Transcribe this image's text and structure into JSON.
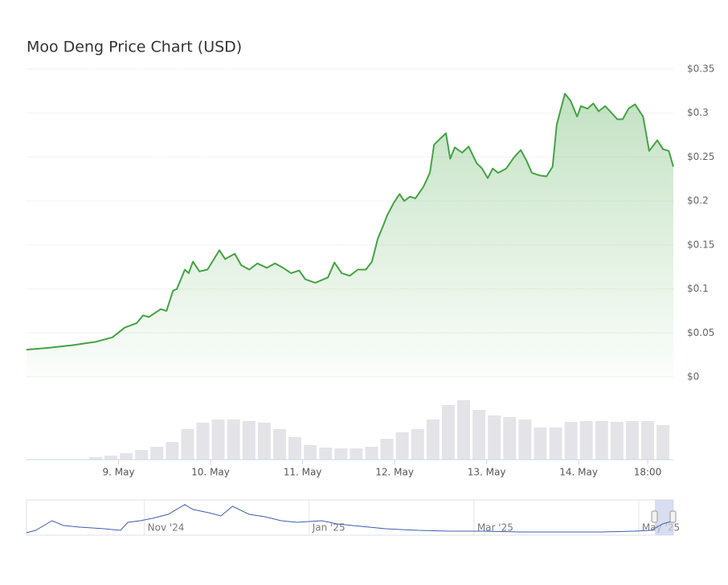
{
  "chart_data": {
    "type": "line",
    "title": "Moo Deng Price Chart (USD)",
    "x": [
      0,
      5.7,
      11.9,
      18.2,
      22.4,
      25.6,
      28.7,
      30.4,
      31.9,
      35,
      36.5,
      38.2,
      39.2,
      41.3,
      42.3,
      43.4,
      45.1,
      47.2,
      48.6,
      50.3,
      51.8,
      54.3,
      56,
      58.1,
      60.2,
      62.7,
      64.8,
      66.9,
      69,
      71.1,
      72.7,
      75.3,
      78.6,
      80.3,
      82.2,
      84.3,
      86.4,
      88.5,
      90.1,
      91.6,
      93.1,
      94.1,
      95.8,
      97.3,
      98.5,
      100,
      101.4,
      103.5,
      105.2,
      106.3,
      107.9,
      109.4,
      110.5,
      111.7,
      113.6,
      115.3,
      117.4,
      118.8,
      120.3,
      121.6,
      123,
      125.1,
      127.2,
      128.9,
      130.4,
      131.8,
      133.9,
      135.6,
      137.2,
      138.3,
      140.4,
      141.9,
      143.6,
      144.6,
      146.3,
      147.8,
      149.2,
      150.9,
      152.4,
      154.1,
      155.5,
      157,
      158.7,
      160.8,
      162.4,
      164.5,
      166,
      167.5,
      168.7
    ],
    "series": [
      {
        "color": "#43a343",
        "values": [
          0.031,
          0.033,
          0.036,
          0.04,
          0.045,
          0.056,
          0.061,
          0.07,
          0.068,
          0.077,
          0.075,
          0.098,
          0.1,
          0.122,
          0.118,
          0.131,
          0.12,
          0.122,
          0.132,
          0.144,
          0.134,
          0.14,
          0.127,
          0.122,
          0.129,
          0.124,
          0.129,
          0.124,
          0.118,
          0.121,
          0.111,
          0.107,
          0.113,
          0.13,
          0.118,
          0.115,
          0.122,
          0.122,
          0.131,
          0.157,
          0.173,
          0.184,
          0.198,
          0.208,
          0.2,
          0.205,
          0.203,
          0.216,
          0.232,
          0.264,
          0.271,
          0.277,
          0.248,
          0.261,
          0.255,
          0.262,
          0.243,
          0.237,
          0.226,
          0.237,
          0.232,
          0.237,
          0.25,
          0.258,
          0.246,
          0.232,
          0.229,
          0.228,
          0.239,
          0.287,
          0.322,
          0.314,
          0.296,
          0.308,
          0.305,
          0.311,
          0.302,
          0.308,
          0.301,
          0.293,
          0.293,
          0.305,
          0.31,
          0.296,
          0.257,
          0.269,
          0.259,
          0.257,
          0.239
        ]
      }
    ],
    "xlim": [
      0,
      168.7
    ],
    "xticks": [
      {
        "value": 24,
        "label": "9. May"
      },
      {
        "value": 48,
        "label": "10. May"
      },
      {
        "value": 72,
        "label": "11. May"
      },
      {
        "value": 96,
        "label": "12. May"
      },
      {
        "value": 120,
        "label": "13. May"
      },
      {
        "value": 144,
        "label": "14. May"
      },
      {
        "value": 162,
        "label": "18:00"
      }
    ],
    "ylim": [
      0,
      0.35
    ],
    "yticks": [
      {
        "value": 0,
        "label": "$0"
      },
      {
        "value": 0.05,
        "label": "$0.05"
      },
      {
        "value": 0.1,
        "label": "$0.1"
      },
      {
        "value": 0.15,
        "label": "$0.15"
      },
      {
        "value": 0.2,
        "label": "$0.2"
      },
      {
        "value": 0.25,
        "label": "$0.25"
      },
      {
        "value": 0.3,
        "label": "$0.3"
      },
      {
        "value": 0.35,
        "label": "$0.35"
      }
    ],
    "grid": true,
    "volume": {
      "color": "#e4e4e8",
      "x": [
        2,
        6,
        10,
        14,
        18,
        22,
        26,
        30,
        34,
        38,
        42,
        46,
        50,
        54,
        58,
        62,
        66,
        70,
        74,
        78,
        82,
        86,
        90,
        94,
        98,
        102,
        106,
        110,
        114,
        118,
        122,
        126,
        130,
        134,
        138,
        142,
        146,
        150,
        154,
        158,
        162,
        166
      ],
      "values": [
        0,
        0,
        0,
        0,
        3,
        5,
        8,
        12,
        16,
        22,
        38,
        46,
        50,
        50,
        48,
        46,
        38,
        28,
        18,
        15,
        14,
        14,
        16,
        26,
        34,
        38,
        50,
        68,
        74,
        62,
        55,
        53,
        50,
        40,
        40,
        47,
        48,
        48,
        47,
        48,
        48,
        43
      ]
    },
    "navigator": {
      "color": "#3d5daf",
      "x": [
        -1.43,
        -1.32,
        -1.12,
        -0.98,
        -0.78,
        -0.49,
        -0.29,
        -0.2,
        -0.05,
        0.1,
        0.29,
        0.49,
        0.59,
        0.78,
        0.93,
        1.07,
        1.27,
        1.46,
        1.66,
        1.85,
        2.15,
        2.34,
        2.63,
        2.93,
        3.32,
        3.71,
        4.1,
        4.59,
        5.07,
        5.56,
        5.95,
        6.15,
        6.29,
        6.42
      ],
      "values": [
        3,
        6,
        18,
        12,
        10,
        8,
        6,
        16,
        18,
        21,
        26,
        38,
        32,
        28,
        24,
        36,
        26,
        23,
        18,
        16,
        18,
        14,
        11,
        8,
        6,
        5,
        5,
        4,
        4,
        4,
        5,
        6,
        14,
        18
      ],
      "xlim": [
        -1.43,
        6.42
      ],
      "ylim": [
        0,
        44
      ],
      "xticks": [
        {
          "value": 0,
          "label": "Nov '24"
        },
        {
          "value": 2,
          "label": "Jan '25"
        },
        {
          "value": 4,
          "label": "Mar '25"
        },
        {
          "value": 6,
          "label": "May '25"
        }
      ]
    }
  }
}
